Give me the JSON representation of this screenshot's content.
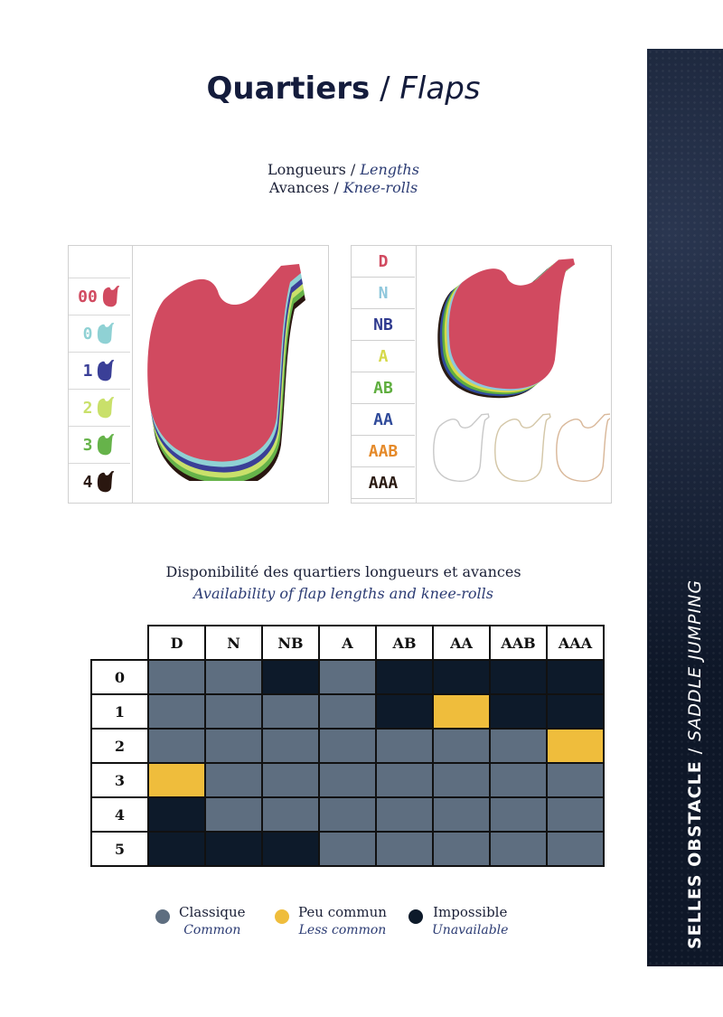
{
  "title": {
    "bold": "Quartiers",
    "slash": " / ",
    "italic": "Flaps"
  },
  "subtitle": {
    "line1_fr": "Longueurs",
    "line1_en": "Lengths",
    "line2_fr": "Avances",
    "line2_en": "Knee-rolls",
    "sep": " / "
  },
  "side": {
    "fr": "SELLES OBSTACLE",
    "sep": "  /  ",
    "en": "SADDLE JUMPING"
  },
  "lengths": [
    {
      "label": "00",
      "color": "#d14a60"
    },
    {
      "label": "0",
      "color": "#8fd1d4"
    },
    {
      "label": "1",
      "color": "#3a3f97"
    },
    {
      "label": "2",
      "color": "#c9e06a"
    },
    {
      "label": "3",
      "color": "#66b34a"
    },
    {
      "label": "4",
      "color": "#2a1710"
    }
  ],
  "kneerolls": [
    {
      "label": "D",
      "color": "#d14a60"
    },
    {
      "label": "N",
      "color": "#8fc7dc"
    },
    {
      "label": "NB",
      "color": "#2f3a8f"
    },
    {
      "label": "A",
      "color": "#d6d94a"
    },
    {
      "label": "AB",
      "color": "#5fae3f"
    },
    {
      "label": "AA",
      "color": "#2f4a9a"
    },
    {
      "label": "AAB",
      "color": "#e58a2a"
    },
    {
      "label": "AAA",
      "color": "#2a1a12"
    }
  ],
  "availability": {
    "title_fr": "Disponibilité des quartiers longueurs et avances",
    "title_en": "Availability of flap lengths and knee-rolls",
    "columns": [
      "D",
      "N",
      "NB",
      "A",
      "AB",
      "AA",
      "AAB",
      "AAA"
    ],
    "rows": [
      {
        "label": "0",
        "cells": [
          "c",
          "c",
          "i",
          "c",
          "i",
          "i",
          "i",
          "i"
        ]
      },
      {
        "label": "1",
        "cells": [
          "c",
          "c",
          "c",
          "c",
          "i",
          "l",
          "i",
          "i"
        ]
      },
      {
        "label": "2",
        "cells": [
          "c",
          "c",
          "c",
          "c",
          "c",
          "c",
          "c",
          "l"
        ]
      },
      {
        "label": "3",
        "cells": [
          "l",
          "c",
          "c",
          "c",
          "c",
          "c",
          "c",
          "c"
        ]
      },
      {
        "label": "4",
        "cells": [
          "i",
          "c",
          "c",
          "c",
          "c",
          "c",
          "c",
          "c"
        ]
      },
      {
        "label": "5",
        "cells": [
          "i",
          "i",
          "i",
          "c",
          "c",
          "c",
          "c",
          "c"
        ]
      }
    ],
    "colors": {
      "c": "#5e6e80",
      "l": "#efbd3c",
      "i": "#0d1a2a"
    }
  },
  "legend": [
    {
      "fr": "Classique",
      "en": "Common",
      "color": "#5e6e80"
    },
    {
      "fr": "Peu commun",
      "en": "Less common",
      "color": "#efbd3c"
    },
    {
      "fr": "Impossible",
      "en": "Unavailable",
      "color": "#0d1a2a"
    }
  ]
}
